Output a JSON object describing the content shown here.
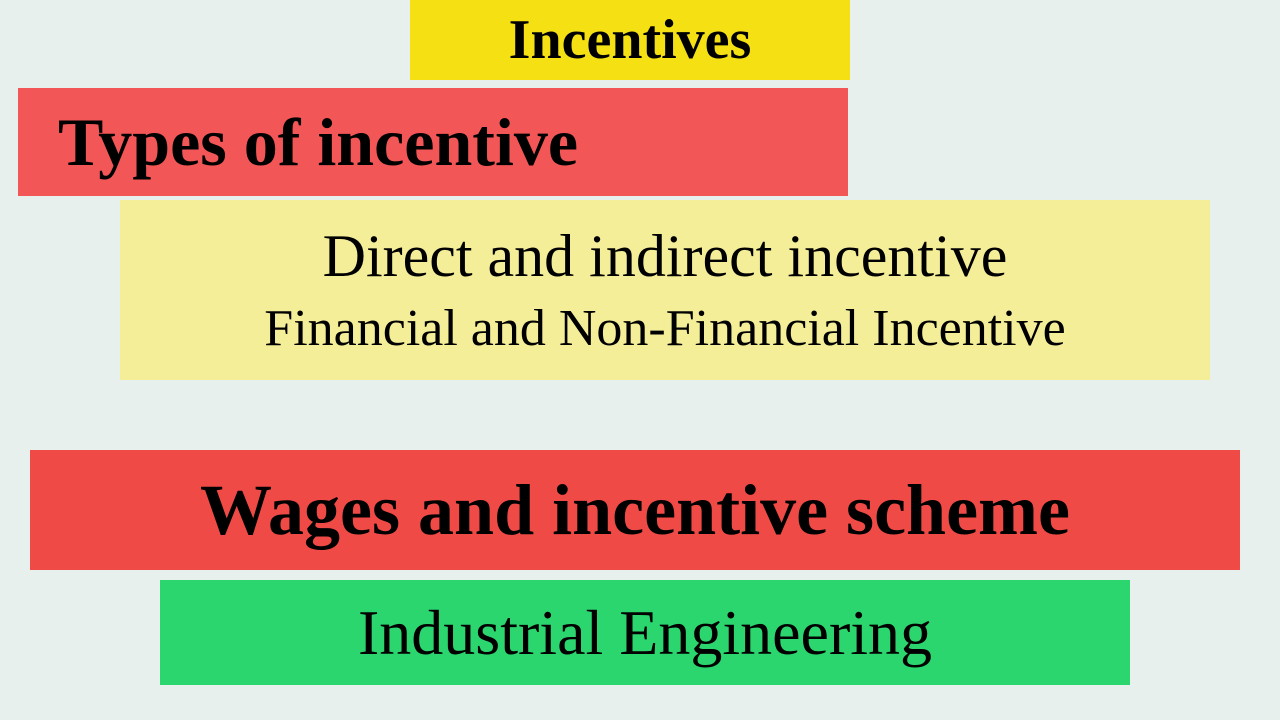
{
  "boxes": {
    "title": {
      "text": "Incentives",
      "bg_color": "#f4e013",
      "font_size": 56,
      "font_weight": "bold"
    },
    "types": {
      "text": "Types of incentive",
      "bg_color": "#f25656",
      "font_size": 68,
      "font_weight": "bold"
    },
    "direct": {
      "line1": "Direct and  indirect incentive",
      "line2": "Financial and Non-Financial Incentive",
      "bg_color": "#f5ee98",
      "font_size_line1": 60,
      "font_size_line2": 52
    },
    "wages": {
      "text": "Wages and incentive scheme",
      "bg_color": "#f04a46",
      "font_size": 72,
      "font_weight": "bold"
    },
    "industrial": {
      "text": "Industrial Engineering",
      "bg_color": "#2cd66f",
      "font_size": 64,
      "font_weight": "normal"
    }
  },
  "page": {
    "background_color": "#e8f0ed",
    "text_color": "#000000",
    "font_family": "Times New Roman"
  }
}
